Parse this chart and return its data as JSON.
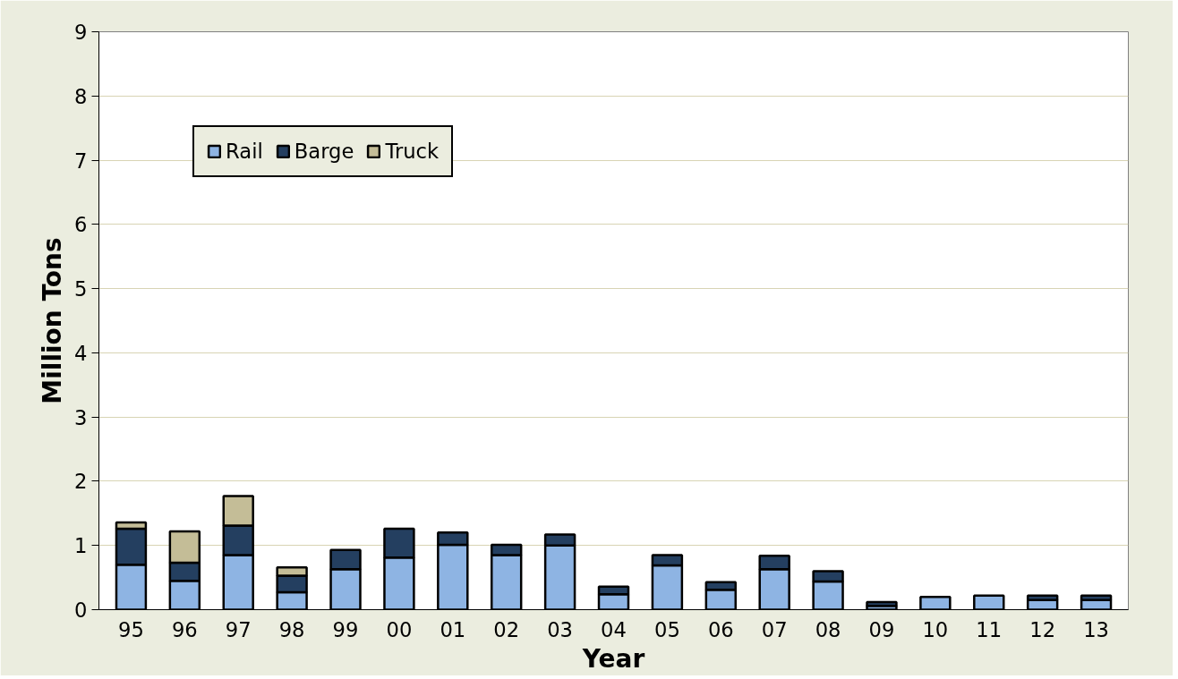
{
  "chart_data": {
    "type": "bar",
    "stacked": true,
    "xlabel": "Year",
    "ylabel": "Million Tons",
    "categories": [
      "95",
      "96",
      "97",
      "98",
      "99",
      "00",
      "01",
      "02",
      "03",
      "04",
      "05",
      "06",
      "07",
      "08",
      "09",
      "10",
      "11",
      "12",
      "13"
    ],
    "series": [
      {
        "name": "Rail",
        "color": "#8eb4e3",
        "values": [
          0.7,
          0.45,
          0.85,
          0.27,
          0.63,
          0.81,
          1.01,
          0.85,
          1.0,
          0.24,
          0.69,
          0.31,
          0.63,
          0.44,
          0.06,
          0.2,
          0.22,
          0.15,
          0.15
        ]
      },
      {
        "name": "Barge",
        "color": "#243f60",
        "values": [
          0.56,
          0.28,
          0.46,
          0.26,
          0.3,
          0.45,
          0.19,
          0.16,
          0.17,
          0.12,
          0.16,
          0.12,
          0.21,
          0.16,
          0.06,
          null,
          null,
          0.07,
          0.07
        ]
      },
      {
        "name": "Truck",
        "color": "#c4bd97",
        "values": [
          0.1,
          0.49,
          0.46,
          0.13,
          null,
          null,
          null,
          null,
          null,
          null,
          null,
          null,
          null,
          null,
          null,
          null,
          null,
          null,
          null
        ]
      }
    ],
    "ylim": [
      0,
      9
    ],
    "yticks": [
      0,
      1,
      2,
      3,
      4,
      5,
      6,
      7,
      8,
      9
    ],
    "grid": "y",
    "legend": "top left"
  }
}
